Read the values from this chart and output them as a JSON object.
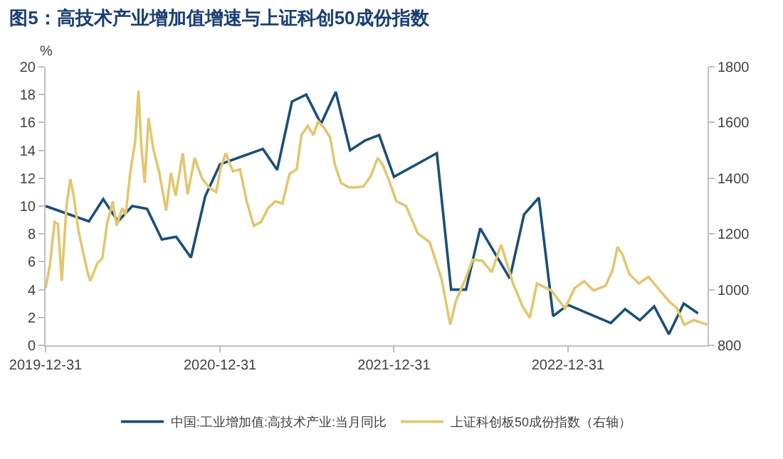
{
  "chart_data": {
    "type": "line",
    "title": "图5：高技术产业增加值增速与上证科创50成份指数",
    "ylabel": "%",
    "legend": "bottom",
    "grid": false,
    "marker": "none",
    "line_style": "solid",
    "xlim": [
      "2019-12-31",
      "2023-10-20"
    ],
    "xticks": [
      "2019-12-31",
      "2020-12-31",
      "2021-12-31",
      "2022-12-31"
    ],
    "ylim": [
      0,
      20
    ],
    "yticks": [
      0,
      2,
      4,
      6,
      8,
      10,
      12,
      14,
      16,
      18,
      20
    ],
    "y2lim": [
      800,
      1800
    ],
    "y2ticks": [
      800,
      1000,
      1200,
      1400,
      1600,
      1800
    ],
    "series": [
      {
        "name": "中国:工业增加值:高技术产业:当月同比",
        "color": "#1b4f7a",
        "x": [
          "2019-12-31",
          "2020-03-31",
          "2020-04-30",
          "2020-05-31",
          "2020-06-30",
          "2020-07-31",
          "2020-08-31",
          "2020-09-30",
          "2020-10-31",
          "2020-11-30",
          "2020-12-31",
          "2021-03-31",
          "2021-04-30",
          "2021-05-31",
          "2021-06-30",
          "2021-07-31",
          "2021-08-31",
          "2021-09-30",
          "2021-10-31",
          "2021-11-30",
          "2021-12-31",
          "2022-03-31",
          "2022-04-30",
          "2022-05-31",
          "2022-06-30",
          "2022-08-31",
          "2022-09-30",
          "2022-10-31",
          "2022-11-30",
          "2022-12-31",
          "2023-03-31",
          "2023-04-30",
          "2023-05-31",
          "2023-06-30",
          "2023-07-31",
          "2023-08-31",
          "2023-09-30"
        ],
        "values": [
          10.0,
          8.9,
          10.5,
          8.9,
          10.0,
          9.8,
          7.6,
          7.8,
          6.3,
          10.7,
          13.0,
          14.1,
          12.6,
          17.5,
          18.0,
          15.9,
          18.2,
          14.0,
          14.7,
          15.1,
          12.1,
          13.8,
          4.0,
          4.0,
          8.4,
          4.8,
          9.4,
          10.6,
          2.1,
          2.9,
          1.6,
          2.6,
          1.8,
          2.8,
          0.8,
          3.0,
          2.3
        ]
      },
      {
        "name": "上证科创板50成份指数（右轴）",
        "color": "#e3c66e",
        "axis": "y2",
        "x": [
          "2019-12-31",
          "2020-01-09",
          "2020-01-19",
          "2020-01-26",
          "2020-02-03",
          "2020-02-13",
          "2020-02-21",
          "2020-02-28",
          "2020-03-09",
          "2020-03-29",
          "2020-04-03",
          "2020-04-18",
          "2020-04-28",
          "2020-05-08",
          "2020-05-20",
          "2020-05-28",
          "2020-06-09",
          "2020-06-16",
          "2020-06-26",
          "2020-07-06",
          "2020-07-13",
          "2020-07-19",
          "2020-07-26",
          "2020-08-03",
          "2020-08-13",
          "2020-08-25",
          "2020-09-09",
          "2020-09-19",
          "2020-09-29",
          "2020-10-14",
          "2020-10-24",
          "2020-11-08",
          "2020-11-23",
          "2020-12-08",
          "2020-12-23",
          "2021-01-02",
          "2021-01-12",
          "2021-01-27",
          "2021-02-11",
          "2021-02-25",
          "2021-03-12",
          "2021-03-27",
          "2021-04-11",
          "2021-04-26",
          "2021-05-11",
          "2021-05-26",
          "2021-06-10",
          "2021-06-20",
          "2021-07-03",
          "2021-07-15",
          "2021-07-25",
          "2021-08-07",
          "2021-08-19",
          "2021-08-29",
          "2021-09-11",
          "2021-09-28",
          "2021-10-13",
          "2021-10-28",
          "2021-11-12",
          "2021-11-27",
          "2021-12-07",
          "2021-12-21",
          "2022-01-05",
          "2022-01-25",
          "2022-02-19",
          "2022-03-16",
          "2022-04-10",
          "2022-04-28",
          "2022-05-10",
          "2022-05-30",
          "2022-06-14",
          "2022-07-04",
          "2022-07-24",
          "2022-08-13",
          "2022-09-07",
          "2022-09-27",
          "2022-10-12",
          "2022-10-27",
          "2022-11-26",
          "2022-12-25",
          "2023-01-14",
          "2023-02-03",
          "2023-02-23",
          "2023-03-20",
          "2023-04-04",
          "2023-04-14",
          "2023-04-24",
          "2023-05-09",
          "2023-05-29",
          "2023-06-18",
          "2023-07-08",
          "2023-07-28",
          "2023-08-17",
          "2023-09-01",
          "2023-09-21",
          "2023-10-06",
          "2023-10-19"
        ],
        "values": [
          1005,
          1087,
          1243,
          1235,
          1031,
          1302,
          1396,
          1337,
          1210,
          1056,
          1031,
          1096,
          1112,
          1235,
          1317,
          1229,
          1293,
          1268,
          1424,
          1531,
          1715,
          1514,
          1383,
          1616,
          1506,
          1424,
          1284,
          1419,
          1337,
          1490,
          1342,
          1473,
          1400,
          1367,
          1350,
          1440,
          1490,
          1424,
          1432,
          1317,
          1229,
          1243,
          1293,
          1317,
          1309,
          1416,
          1432,
          1555,
          1588,
          1555,
          1604,
          1580,
          1547,
          1449,
          1383,
          1367,
          1367,
          1370,
          1407,
          1473,
          1449,
          1391,
          1317,
          1301,
          1202,
          1170,
          1038,
          874,
          959,
          1038,
          1107,
          1104,
          1063,
          1161,
          1022,
          939,
          899,
          1022,
          997,
          932,
          1005,
          1030,
          997,
          1014,
          1071,
          1153,
          1128,
          1055,
          1022,
          1046,
          1005,
          964,
          932,
          874,
          890,
          882,
          874
        ]
      }
    ]
  }
}
